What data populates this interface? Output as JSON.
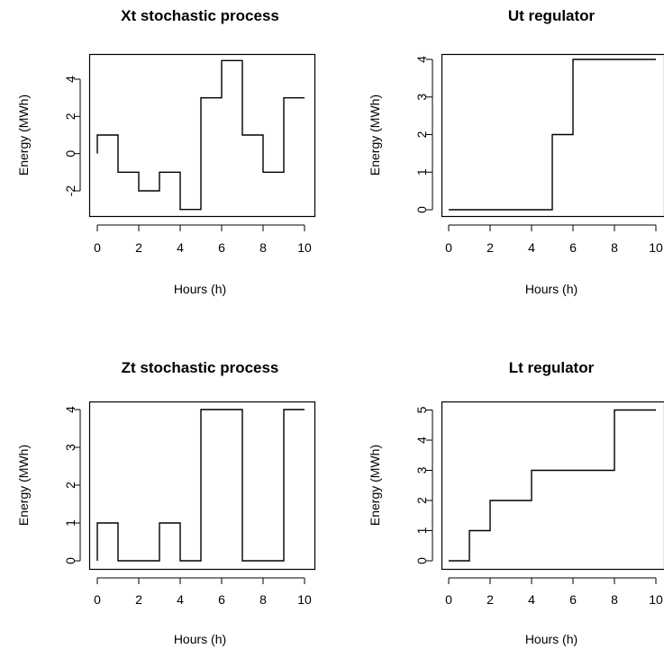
{
  "chart_data": [
    {
      "type": "line",
      "step": true,
      "title": "Xt stochastic process",
      "xlabel": "Hours (h)",
      "ylabel": "Energy (MWh)",
      "xlim": [
        0,
        10
      ],
      "ylim": [
        -3,
        5
      ],
      "xticks": [
        "0",
        "2",
        "4",
        "6",
        "8",
        "10"
      ],
      "yticks": [
        "-2",
        "0",
        "2",
        "4"
      ],
      "x": [
        0,
        1,
        2,
        3,
        4,
        5,
        6,
        7,
        8,
        9,
        10
      ],
      "values": [
        1,
        -1,
        -2,
        -1,
        -3,
        3,
        5,
        1,
        -1,
        3,
        3
      ]
    },
    {
      "type": "line",
      "step": true,
      "title": "Ut regulator",
      "xlabel": "Hours (h)",
      "ylabel": "Energy (MWh)",
      "xlim": [
        0,
        10
      ],
      "ylim": [
        0,
        4
      ],
      "xticks": [
        "0",
        "2",
        "4",
        "6",
        "8",
        "10"
      ],
      "yticks": [
        "0",
        "1",
        "2",
        "3",
        "4"
      ],
      "x": [
        0,
        1,
        2,
        3,
        4,
        5,
        6,
        7,
        8,
        9,
        10
      ],
      "values": [
        0,
        0,
        0,
        0,
        0,
        2,
        4,
        4,
        4,
        4,
        4
      ]
    },
    {
      "type": "line",
      "step": true,
      "title": "Zt stochastic process",
      "xlabel": "Hours (h)",
      "ylabel": "Energy (MWh)",
      "xlim": [
        0,
        10
      ],
      "ylim": [
        0,
        4
      ],
      "xticks": [
        "0",
        "2",
        "4",
        "6",
        "8",
        "10"
      ],
      "yticks": [
        "0",
        "1",
        "2",
        "3",
        "4"
      ],
      "x": [
        0,
        1,
        2,
        3,
        4,
        5,
        6,
        7,
        8,
        9,
        10
      ],
      "values": [
        1,
        0,
        0,
        1,
        0,
        4,
        4,
        0,
        0,
        4,
        4
      ]
    },
    {
      "type": "line",
      "step": true,
      "title": "Lt regulator",
      "xlabel": "Hours (h)",
      "ylabel": "Energy (MWh)",
      "xlim": [
        0,
        10
      ],
      "ylim": [
        0,
        5
      ],
      "xticks": [
        "0",
        "2",
        "4",
        "6",
        "8",
        "10"
      ],
      "yticks": [
        "0",
        "1",
        "2",
        "3",
        "4",
        "5"
      ],
      "x": [
        0,
        1,
        2,
        3,
        4,
        5,
        6,
        7,
        8,
        9,
        10
      ],
      "values": [
        0,
        1,
        2,
        2,
        3,
        3,
        3,
        3,
        5,
        5,
        5
      ]
    }
  ]
}
